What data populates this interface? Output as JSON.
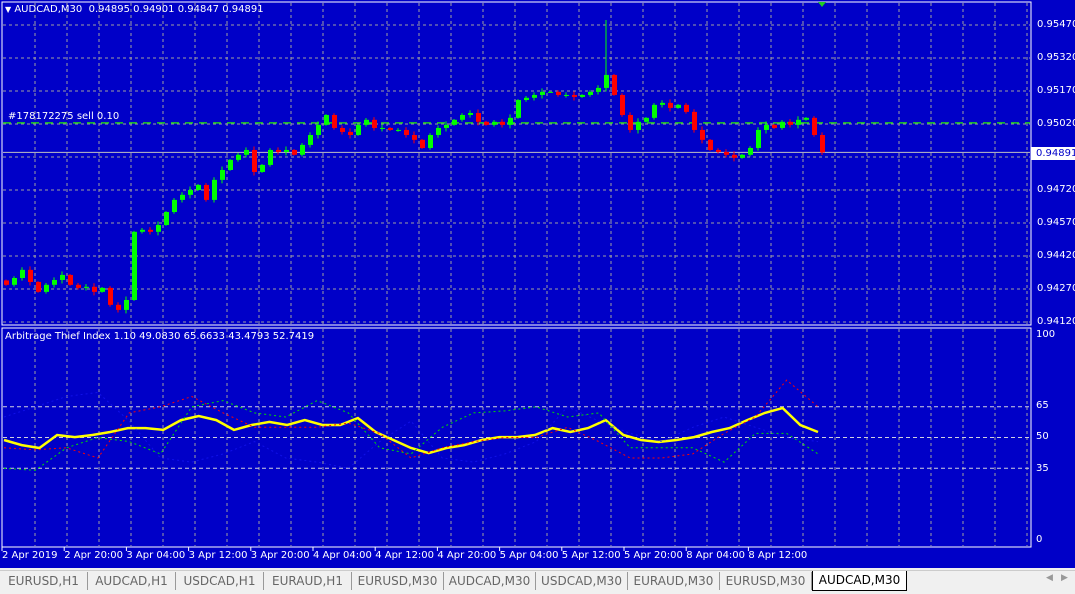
{
  "header": {
    "symbol": "AUDCAD,M30",
    "ohlc": "0.94895 0.94901 0.94847 0.94891"
  },
  "order_label": "#178172275 sell 0.10",
  "order_price": 0.95025,
  "current_price": "0.94891",
  "price_axis": [
    "0.95470",
    "0.95320",
    "0.95170",
    "0.95020",
    "0.94720",
    "0.94570",
    "0.94420",
    "0.94270",
    "0.94120"
  ],
  "indicator": {
    "title": "Arbitrage Thief Index 1.10 49.0830 65.6633 43.4793 52.7419",
    "axis": [
      "100",
      "65",
      "50",
      "35",
      "0"
    ],
    "levels": [
      65,
      50,
      35
    ]
  },
  "time_axis": [
    "2 Apr 2019",
    "2 Apr 20:00",
    "3 Apr 04:00",
    "3 Apr 12:00",
    "3 Apr 20:00",
    "4 Apr 04:00",
    "4 Apr 12:00",
    "4 Apr 20:00",
    "5 Apr 04:00",
    "5 Apr 12:00",
    "5 Apr 20:00",
    "8 Apr 04:00",
    "8 Apr 12:00"
  ],
  "tabs": [
    {
      "label": "EURUSD,H1"
    },
    {
      "label": "AUDCAD,H1"
    },
    {
      "label": "USDCAD,H1"
    },
    {
      "label": "EURAUD,H1"
    },
    {
      "label": "EURUSD,M30"
    },
    {
      "label": "AUDCAD,M30"
    },
    {
      "label": "USDCAD,M30"
    },
    {
      "label": "EURAUD,M30"
    },
    {
      "label": "EURUSD,M30"
    },
    {
      "label": "AUDCAD,M30",
      "active": true
    }
  ],
  "colors": {
    "background": "#0000c8",
    "bull": "#00ff00",
    "bear": "#ff0000",
    "grid": "#a0a0a0",
    "index_line": "#ffff00"
  },
  "chart_data": {
    "type": "candlestick",
    "price_range": [
      0.9412,
      0.9547
    ],
    "closes": [
      0.94289,
      0.9432,
      0.94357,
      0.94302,
      0.94257,
      0.94289,
      0.94311,
      0.94334,
      0.94289,
      0.94275,
      0.9428,
      0.94257,
      0.94275,
      0.94198,
      0.94175,
      0.9422,
      0.9453,
      0.94539,
      0.9453,
      0.94561,
      0.9462,
      0.94675,
      0.94698,
      0.9472,
      0.94743,
      0.94675,
      0.94766,
      0.94811,
      0.94857,
      0.9488,
      0.94902,
      0.94802,
      0.94834,
      0.94902,
      0.94893,
      0.94902,
      0.9488,
      0.94925,
      0.9497,
      0.95016,
      0.95061,
      0.95002,
      0.94984,
      0.9497,
      0.95016,
      0.95039,
      0.95002,
      0.95002,
      0.94993,
      0.94993,
      0.9497,
      0.94948,
      0.94911,
      0.9497,
      0.95002,
      0.95016,
      0.95039,
      0.95061,
      0.9507,
      0.9503,
      0.95016,
      0.9503,
      0.95016,
      0.95048,
      0.95129,
      0.95139,
      0.95152,
      0.95166,
      0.95166,
      0.95152,
      0.95152,
      0.95143,
      0.95152,
      0.95166,
      0.95184,
      0.95243,
      0.95152,
      0.95061,
      0.94993,
      0.9503,
      0.95048,
      0.95107,
      0.95116,
      0.95093,
      0.95107,
      0.95075,
      0.94993,
      0.94948,
      0.94902,
      0.94893,
      0.9488,
      0.94866,
      0.9488,
      0.94911,
      0.94993,
      0.95016,
      0.95002,
      0.9503,
      0.95016,
      0.95039,
      0.95048,
      0.9497,
      0.94891
    ],
    "spike_high": 0.95493,
    "index_range": [
      0,
      100
    ],
    "series": [
      {
        "values": [
          48.8,
          46.3,
          44.9,
          51.2,
          50.2,
          51.2,
          52.7,
          54.6,
          54.6,
          53.7,
          58.5,
          60.5,
          58.5,
          53.7,
          56.1,
          57.6,
          56.1,
          58.5,
          56.1,
          56.1,
          59.5,
          52.7,
          48.8,
          44.9,
          42.4,
          44.9,
          46.3,
          48.8,
          50.2,
          50.2,
          51.2,
          54.6,
          52.7,
          54.6,
          58.5,
          51.2,
          48.8,
          47.8,
          48.8,
          50.2,
          52.7,
          54.6,
          58.5,
          62.0,
          64.4,
          56.1,
          52.7
        ],
        "color": "#ffff00"
      },
      {
        "values": [
          45,
          44,
          45,
          40,
          62,
          65,
          70,
          62,
          55,
          55,
          55,
          57,
          52,
          40,
          45,
          48,
          50,
          50,
          55,
          48,
          40,
          40,
          42,
          52,
          60,
          78,
          65
        ],
        "color": "#ff0000"
      },
      {
        "values": [
          35,
          34,
          45,
          50,
          48,
          42,
          65,
          68,
          62,
          60,
          68,
          62,
          45,
          42,
          55,
          62,
          63,
          65,
          60,
          62,
          45,
          45,
          45,
          38,
          52,
          52,
          42
        ],
        "color": "#00dd00"
      },
      {
        "values": [
          60,
          65,
          70,
          72,
          58,
          40,
          38,
          42,
          48,
          40,
          38,
          35,
          48,
          58,
          40,
          38,
          42,
          48,
          65,
          58,
          52,
          48,
          55,
          60,
          55,
          50,
          48
        ],
        "color": "#1a1aff"
      }
    ]
  }
}
